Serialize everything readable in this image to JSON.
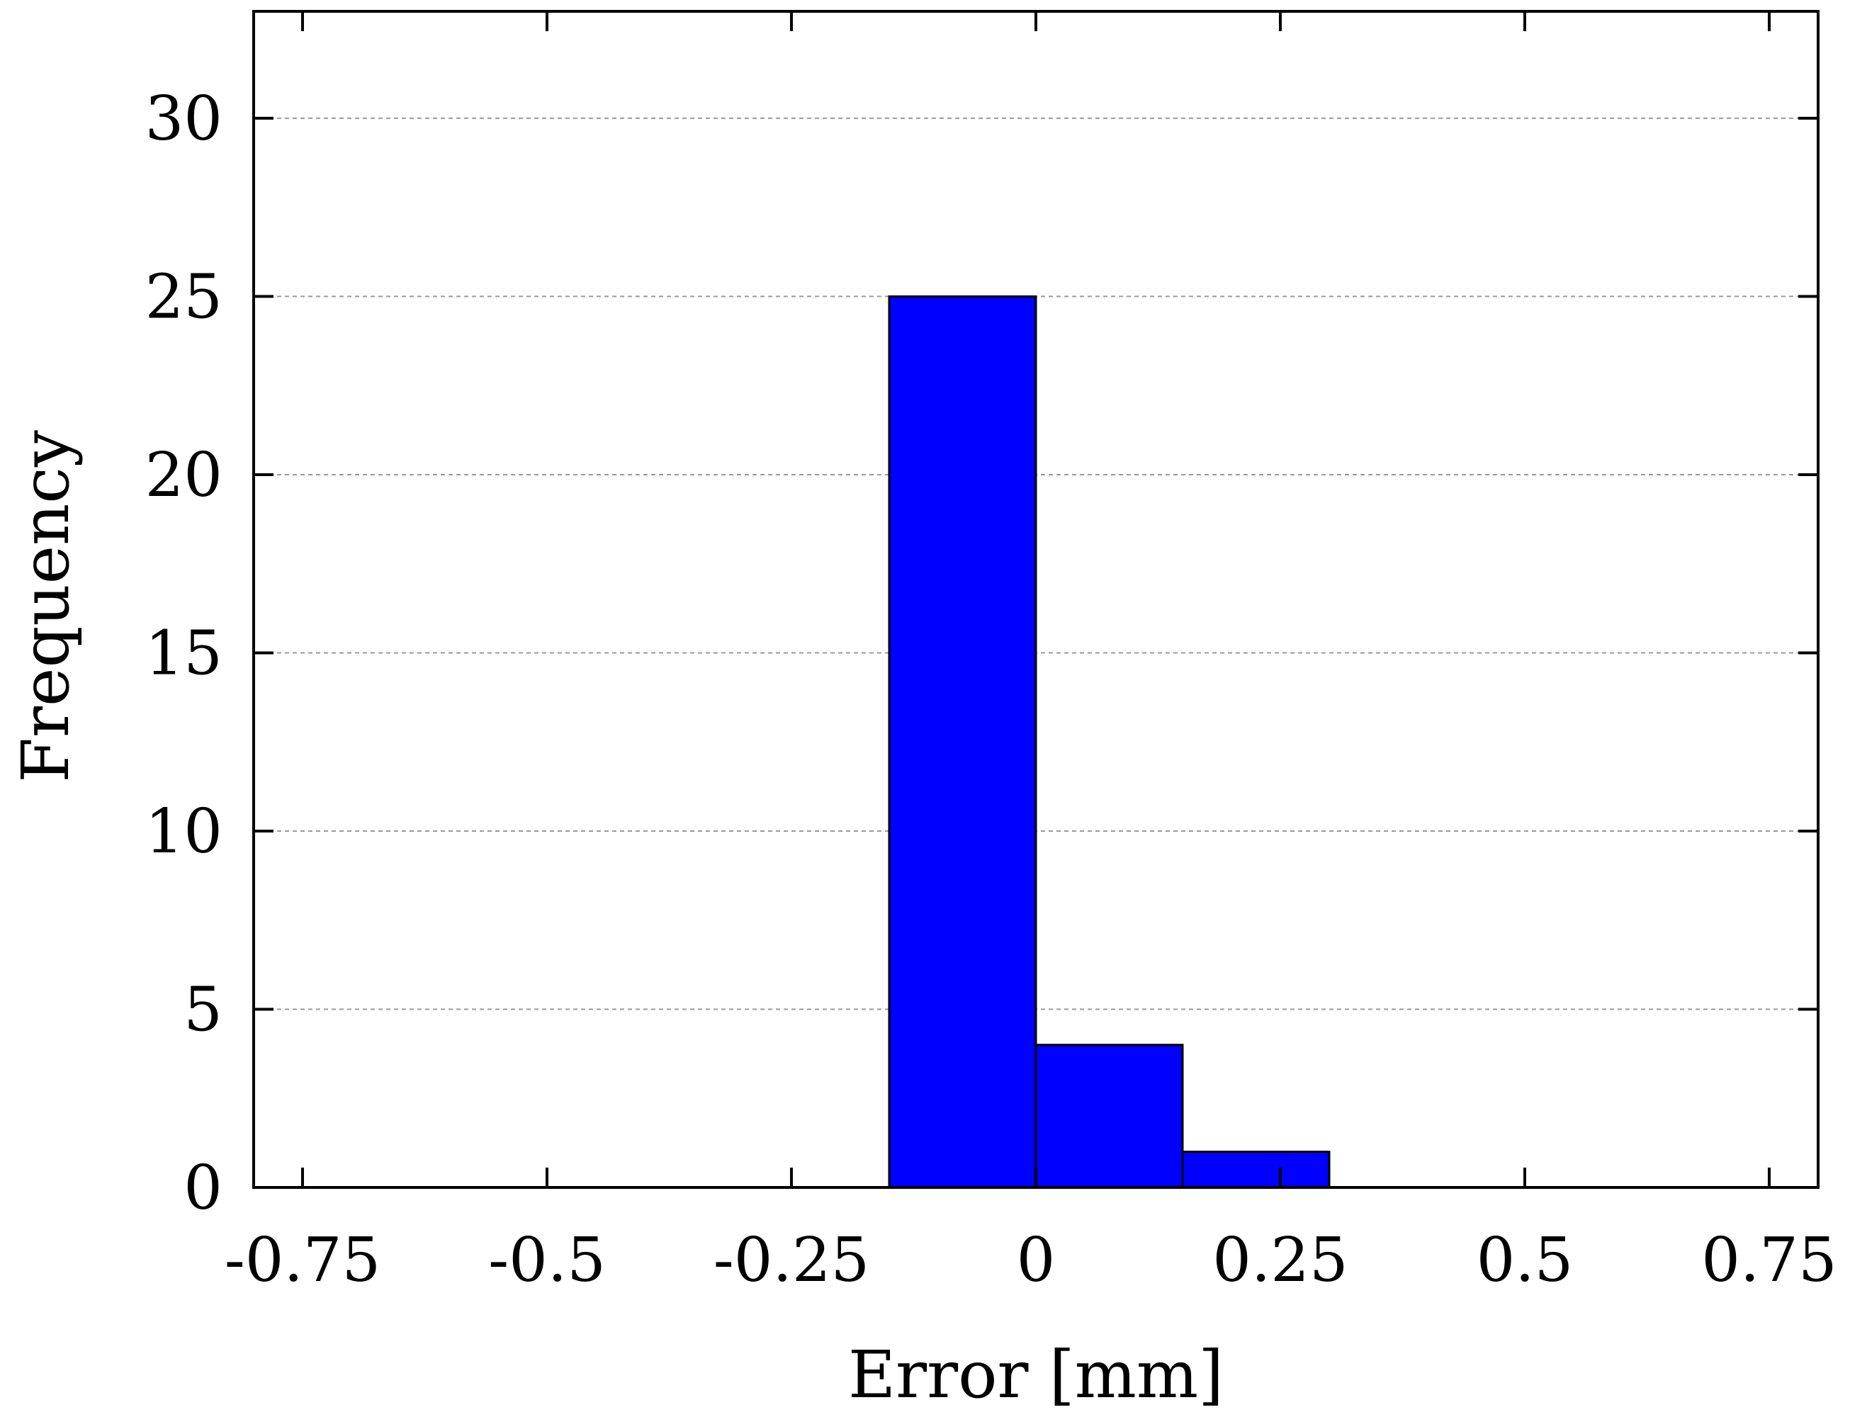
{
  "chart_data": {
    "type": "bar",
    "title": "",
    "xlabel": "Error [mm]",
    "ylabel": "Frequency",
    "xlim": [
      -0.8,
      0.8
    ],
    "ylim": [
      0,
      33
    ],
    "grid": {
      "y": true,
      "x": false
    },
    "bar_color": "#0000ff",
    "bins": [
      {
        "x0": -0.15,
        "x1": 0.0,
        "value": 25
      },
      {
        "x0": 0.0,
        "x1": 0.15,
        "value": 4
      },
      {
        "x0": 0.15,
        "x1": 0.3,
        "value": 1
      }
    ],
    "x_ticks": [
      {
        "value": -0.75,
        "label": "-0.75"
      },
      {
        "value": -0.5,
        "label": "-0.5"
      },
      {
        "value": -0.25,
        "label": "-0.25"
      },
      {
        "value": 0,
        "label": "0"
      },
      {
        "value": 0.25,
        "label": "0.25"
      },
      {
        "value": 0.5,
        "label": "0.5"
      },
      {
        "value": 0.75,
        "label": "0.75"
      }
    ],
    "y_ticks": [
      {
        "value": 0,
        "label": "0"
      },
      {
        "value": 5,
        "label": "5"
      },
      {
        "value": 10,
        "label": "10"
      },
      {
        "value": 15,
        "label": "15"
      },
      {
        "value": 20,
        "label": "20"
      },
      {
        "value": 25,
        "label": "25"
      },
      {
        "value": 30,
        "label": "30"
      }
    ]
  }
}
